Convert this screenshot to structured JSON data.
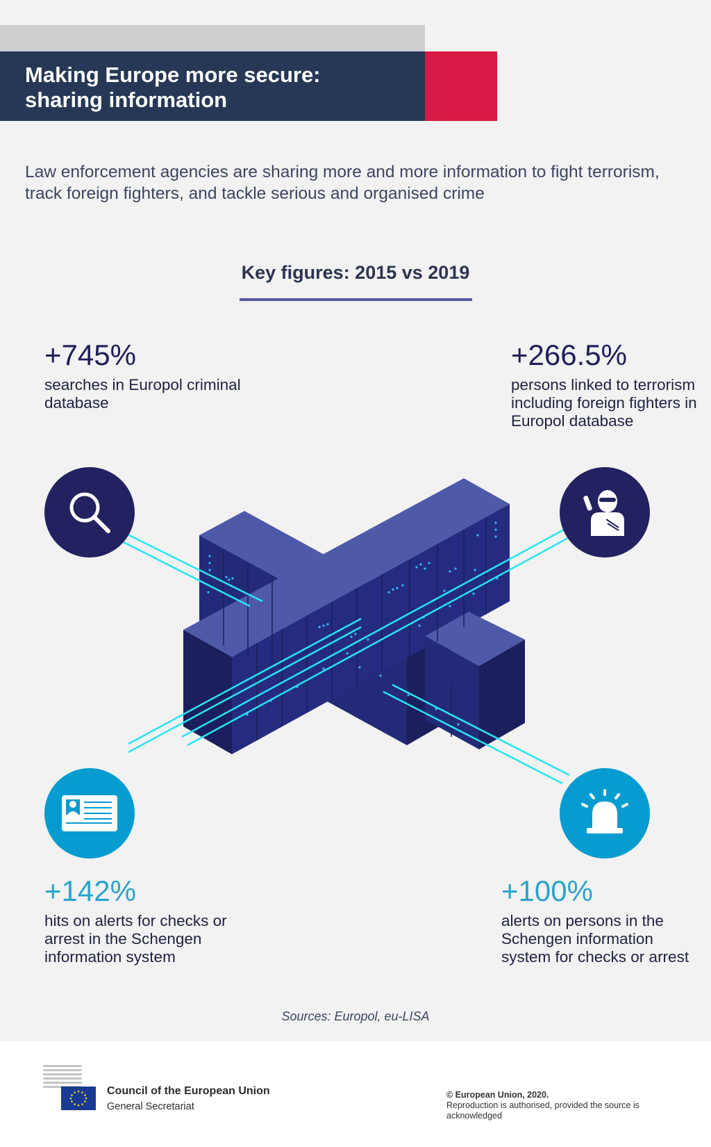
{
  "header": {
    "title_line1": "Making Europe more secure:",
    "title_line2": "sharing information"
  },
  "intro": "Law enforcement agencies are sharing more and more information to fight terrorism, track foreign fighters, and tackle serious and organised crime",
  "key_figures": {
    "title": "Key figures: 2015 vs 2019"
  },
  "stats": {
    "europol_searches": {
      "value": "+745%",
      "description": "searches in Europol criminal database"
    },
    "terrorism_persons": {
      "value": "+266.5%",
      "description": "persons linked to terrorism including foreign fighters in Europol database"
    },
    "sis_hits": {
      "value": "+142%",
      "description": "hits on alerts for checks or arrest in the Schengen information system"
    },
    "sis_alerts": {
      "value": "+100%",
      "description": "alerts on persons in the Schengen information system for checks or arrest"
    }
  },
  "icons": {
    "search": "search-icon",
    "terrorist": "masked-person-icon",
    "id_card": "id-card-icon",
    "alarm": "alarm-light-icon"
  },
  "colors": {
    "title_band": "#263855",
    "accent_red": "#d61a45",
    "dark_circle": "#222260",
    "light_circle": "#069cd0",
    "underline": "#5458a6",
    "connector": "#29e4f0"
  },
  "sources": "Sources: Europol, eu-LISA",
  "footer": {
    "org_name": "Council of the European Union",
    "org_sub": "General Secretariat",
    "copyright_line1": "© European Union, 2020.",
    "copyright_line2": "Reproduction is authorised, provided the source is acknowledged"
  }
}
